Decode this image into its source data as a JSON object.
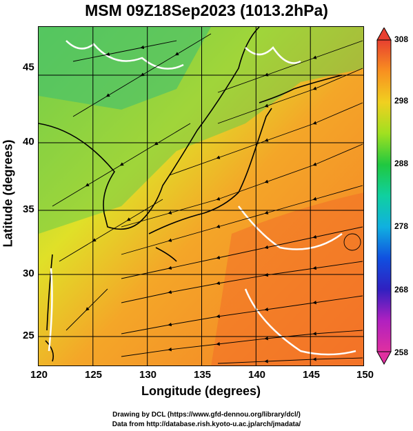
{
  "title": "MSM 09Z18Sep2023 (1013.2hPa)",
  "axes": {
    "xlabel": "Longitude (degrees)",
    "ylabel": "Latitude  (degrees)",
    "xticks": [
      "120",
      "125",
      "130",
      "135",
      "140",
      "145",
      "150"
    ],
    "yticks": [
      "25",
      "30",
      "35",
      "40",
      "45"
    ],
    "xlim": [
      120,
      150
    ],
    "ylim": [
      22.4,
      47.6
    ]
  },
  "colorbar": {
    "labels": [
      "308",
      "298",
      "288",
      "278",
      "268",
      "258"
    ],
    "range": [
      258,
      308
    ],
    "colors": [
      "#e0307a",
      "#c020c0",
      "#3020c0",
      "#1050e0",
      "#10a8e0",
      "#10d8c0",
      "#20c840",
      "#40d020",
      "#a0e020",
      "#e8e820",
      "#f8b020",
      "#f89020",
      "#f06028",
      "#e84030"
    ]
  },
  "credits": {
    "line1": "Drawing by DCL (https://www.gfd-dennou.org/library/dcl/)",
    "line2": "Data from http://database.rish.kyoto-u.ac.jp/arch/jmadata/"
  }
}
